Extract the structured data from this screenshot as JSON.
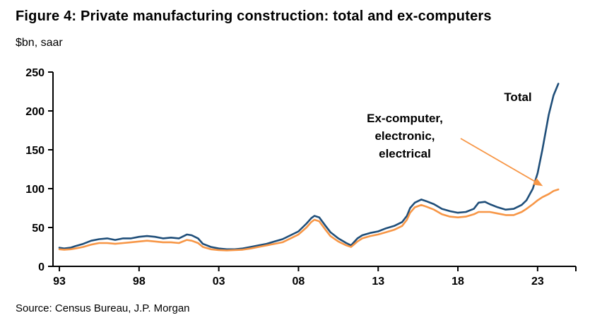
{
  "chart_data": {
    "type": "line",
    "title": "Figure 4: Private manufacturing construction: total and ex-computers",
    "subtitle": "$bn, saar",
    "source": "Source: Census Bureau, J.P. Morgan",
    "xlabel": "",
    "ylabel": "$bn, saar",
    "grid": false,
    "legend_position": "inline-annotations",
    "xlim": [
      1992.6,
      2025.4
    ],
    "ylim": [
      0,
      250
    ],
    "yticks": [
      0,
      50,
      100,
      150,
      200,
      250
    ],
    "xticks": [
      {
        "value": 1993,
        "label": "93"
      },
      {
        "value": 1998,
        "label": "98"
      },
      {
        "value": 2003,
        "label": "03"
      },
      {
        "value": 2008,
        "label": "08"
      },
      {
        "value": 2013,
        "label": "13"
      },
      {
        "value": 2018,
        "label": "18"
      },
      {
        "value": 2023,
        "label": "23"
      }
    ],
    "x": [
      1993.0,
      1993.3,
      1993.7,
      1994.0,
      1994.5,
      1995.0,
      1995.5,
      1996.0,
      1996.5,
      1997.0,
      1997.5,
      1998.0,
      1998.5,
      1999.0,
      1999.5,
      2000.0,
      2000.5,
      2001.0,
      2001.3,
      2001.7,
      2002.0,
      2002.5,
      2003.0,
      2003.5,
      2004.0,
      2004.5,
      2005.0,
      2005.5,
      2006.0,
      2006.5,
      2007.0,
      2007.5,
      2008.0,
      2008.5,
      2008.8,
      2009.0,
      2009.3,
      2009.7,
      2010.0,
      2010.5,
      2011.0,
      2011.3,
      2011.7,
      2012.0,
      2012.5,
      2013.0,
      2013.5,
      2014.0,
      2014.5,
      2014.8,
      2015.0,
      2015.3,
      2015.7,
      2016.0,
      2016.5,
      2017.0,
      2017.5,
      2018.0,
      2018.5,
      2019.0,
      2019.3,
      2019.7,
      2020.0,
      2020.5,
      2021.0,
      2021.5,
      2022.0,
      2022.3,
      2022.7,
      2023.0,
      2023.3,
      2023.7,
      2024.0,
      2024.3
    ],
    "series": [
      {
        "name": "Total",
        "color": "#1f4e79",
        "values": [
          24,
          23,
          24,
          26,
          29,
          33,
          35,
          36,
          34,
          36,
          36,
          38,
          39,
          38,
          36,
          37,
          36,
          41,
          40,
          36,
          29,
          25,
          23,
          22,
          22,
          23,
          25,
          27,
          29,
          32,
          35,
          40,
          45,
          55,
          62,
          65,
          63,
          52,
          44,
          36,
          30,
          27,
          36,
          40,
          43,
          45,
          49,
          52,
          57,
          65,
          75,
          82,
          86,
          84,
          80,
          74,
          71,
          69,
          70,
          74,
          82,
          83,
          80,
          76,
          73,
          74,
          79,
          85,
          100,
          120,
          150,
          195,
          220,
          235
        ]
      },
      {
        "name": "Ex-computer, electronic, electrical",
        "color": "#f79646",
        "values": [
          22,
          21.5,
          22,
          23,
          25,
          28,
          30,
          30,
          29,
          30,
          31,
          32,
          33,
          32,
          31,
          31,
          30,
          34,
          33,
          30,
          25,
          22,
          21,
          20.5,
          21,
          21.5,
          23,
          25,
          27,
          29,
          31,
          36,
          41,
          50,
          57,
          60,
          58,
          47,
          39,
          32,
          27,
          25,
          32,
          36,
          39,
          41,
          44,
          47,
          52,
          60,
          69,
          76,
          79,
          77,
          73,
          67,
          64,
          63,
          64,
          67,
          70,
          70,
          70,
          68,
          66,
          66,
          70,
          74,
          80,
          85,
          89,
          93,
          97,
          99
        ]
      }
    ],
    "annotations": {
      "total_label": "Total",
      "ex_label_lines": [
        "Ex-computer,",
        "electronic,",
        "electrical"
      ]
    }
  }
}
